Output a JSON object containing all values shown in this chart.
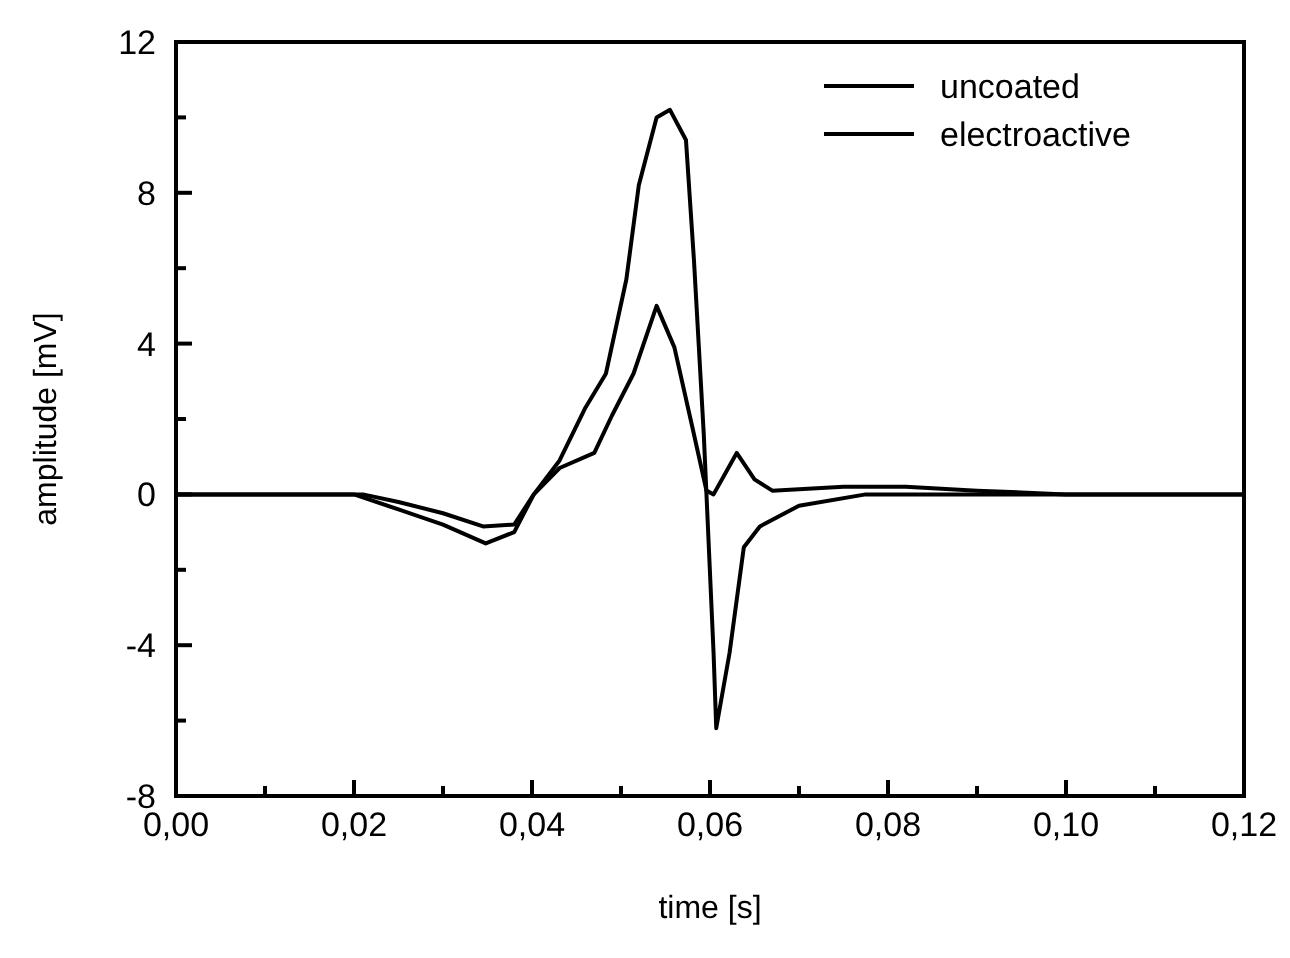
{
  "chart_data": {
    "type": "line",
    "xlabel": "time [s]",
    "ylabel": "amplitude [mV]",
    "xlim": [
      0,
      0.12
    ],
    "ylim": [
      -8,
      12
    ],
    "xticks": [
      {
        "value": 0,
        "label": "0,00"
      },
      {
        "value": 0.01,
        "label": null
      },
      {
        "value": 0.02,
        "label": "0,02"
      },
      {
        "value": 0.03,
        "label": null
      },
      {
        "value": 0.04,
        "label": "0,04"
      },
      {
        "value": 0.05,
        "label": null
      },
      {
        "value": 0.06,
        "label": "0,06"
      },
      {
        "value": 0.07,
        "label": null
      },
      {
        "value": 0.08,
        "label": "0,08"
      },
      {
        "value": 0.09,
        "label": null
      },
      {
        "value": 0.1,
        "label": "0,10"
      },
      {
        "value": 0.11,
        "label": null
      },
      {
        "value": 0.12,
        "label": "0,12"
      }
    ],
    "yticks": [
      -8,
      {
        "value": -6,
        "label": null
      },
      -4,
      {
        "value": -2,
        "label": null
      },
      0,
      {
        "value": 2,
        "label": null
      },
      4,
      {
        "value": 6,
        "label": null
      },
      8,
      {
        "value": 10,
        "label": null
      },
      12
    ],
    "legend": "top right",
    "grid": false,
    "line_style": "solid",
    "series": [
      {
        "name": "uncoated",
        "color": "#000000",
        "x": [
          0,
          0.01,
          0.02,
          0.025,
          0.03,
          0.0348,
          0.038,
          0.0402,
          0.0431,
          0.046,
          0.0483,
          0.0506,
          0.052,
          0.054,
          0.0555,
          0.0573,
          0.0582,
          0.0593,
          0.0604,
          0.0607,
          0.0622,
          0.0638,
          0.0656,
          0.07,
          0.0775,
          0.09,
          0.1,
          0.12
        ],
        "values": [
          0,
          0,
          0,
          -0.4,
          -0.8,
          -1.3,
          -1.0,
          0,
          0.9,
          2.3,
          3.2,
          5.7,
          8.2,
          10.0,
          10.2,
          9.4,
          6.2,
          1.6,
          -4.2,
          -6.2,
          -4.2,
          -1.4,
          -0.85,
          -0.3,
          0,
          0,
          0,
          0
        ]
      },
      {
        "name": "electroactive",
        "color": "#000000",
        "x": [
          0,
          0.01,
          0.021,
          0.025,
          0.03,
          0.0345,
          0.038,
          0.0402,
          0.0431,
          0.047,
          0.049,
          0.0514,
          0.054,
          0.056,
          0.058,
          0.0596,
          0.0604,
          0.063,
          0.065,
          0.067,
          0.075,
          0.082,
          0.09,
          0.1,
          0.12
        ],
        "values": [
          0,
          0,
          0,
          -0.2,
          -0.5,
          -0.85,
          -0.8,
          0,
          0.7,
          1.1,
          2.1,
          3.2,
          5.0,
          3.9,
          1.8,
          0.1,
          0,
          1.1,
          0.4,
          0.1,
          0.2,
          0.2,
          0.1,
          0,
          0
        ]
      }
    ]
  }
}
